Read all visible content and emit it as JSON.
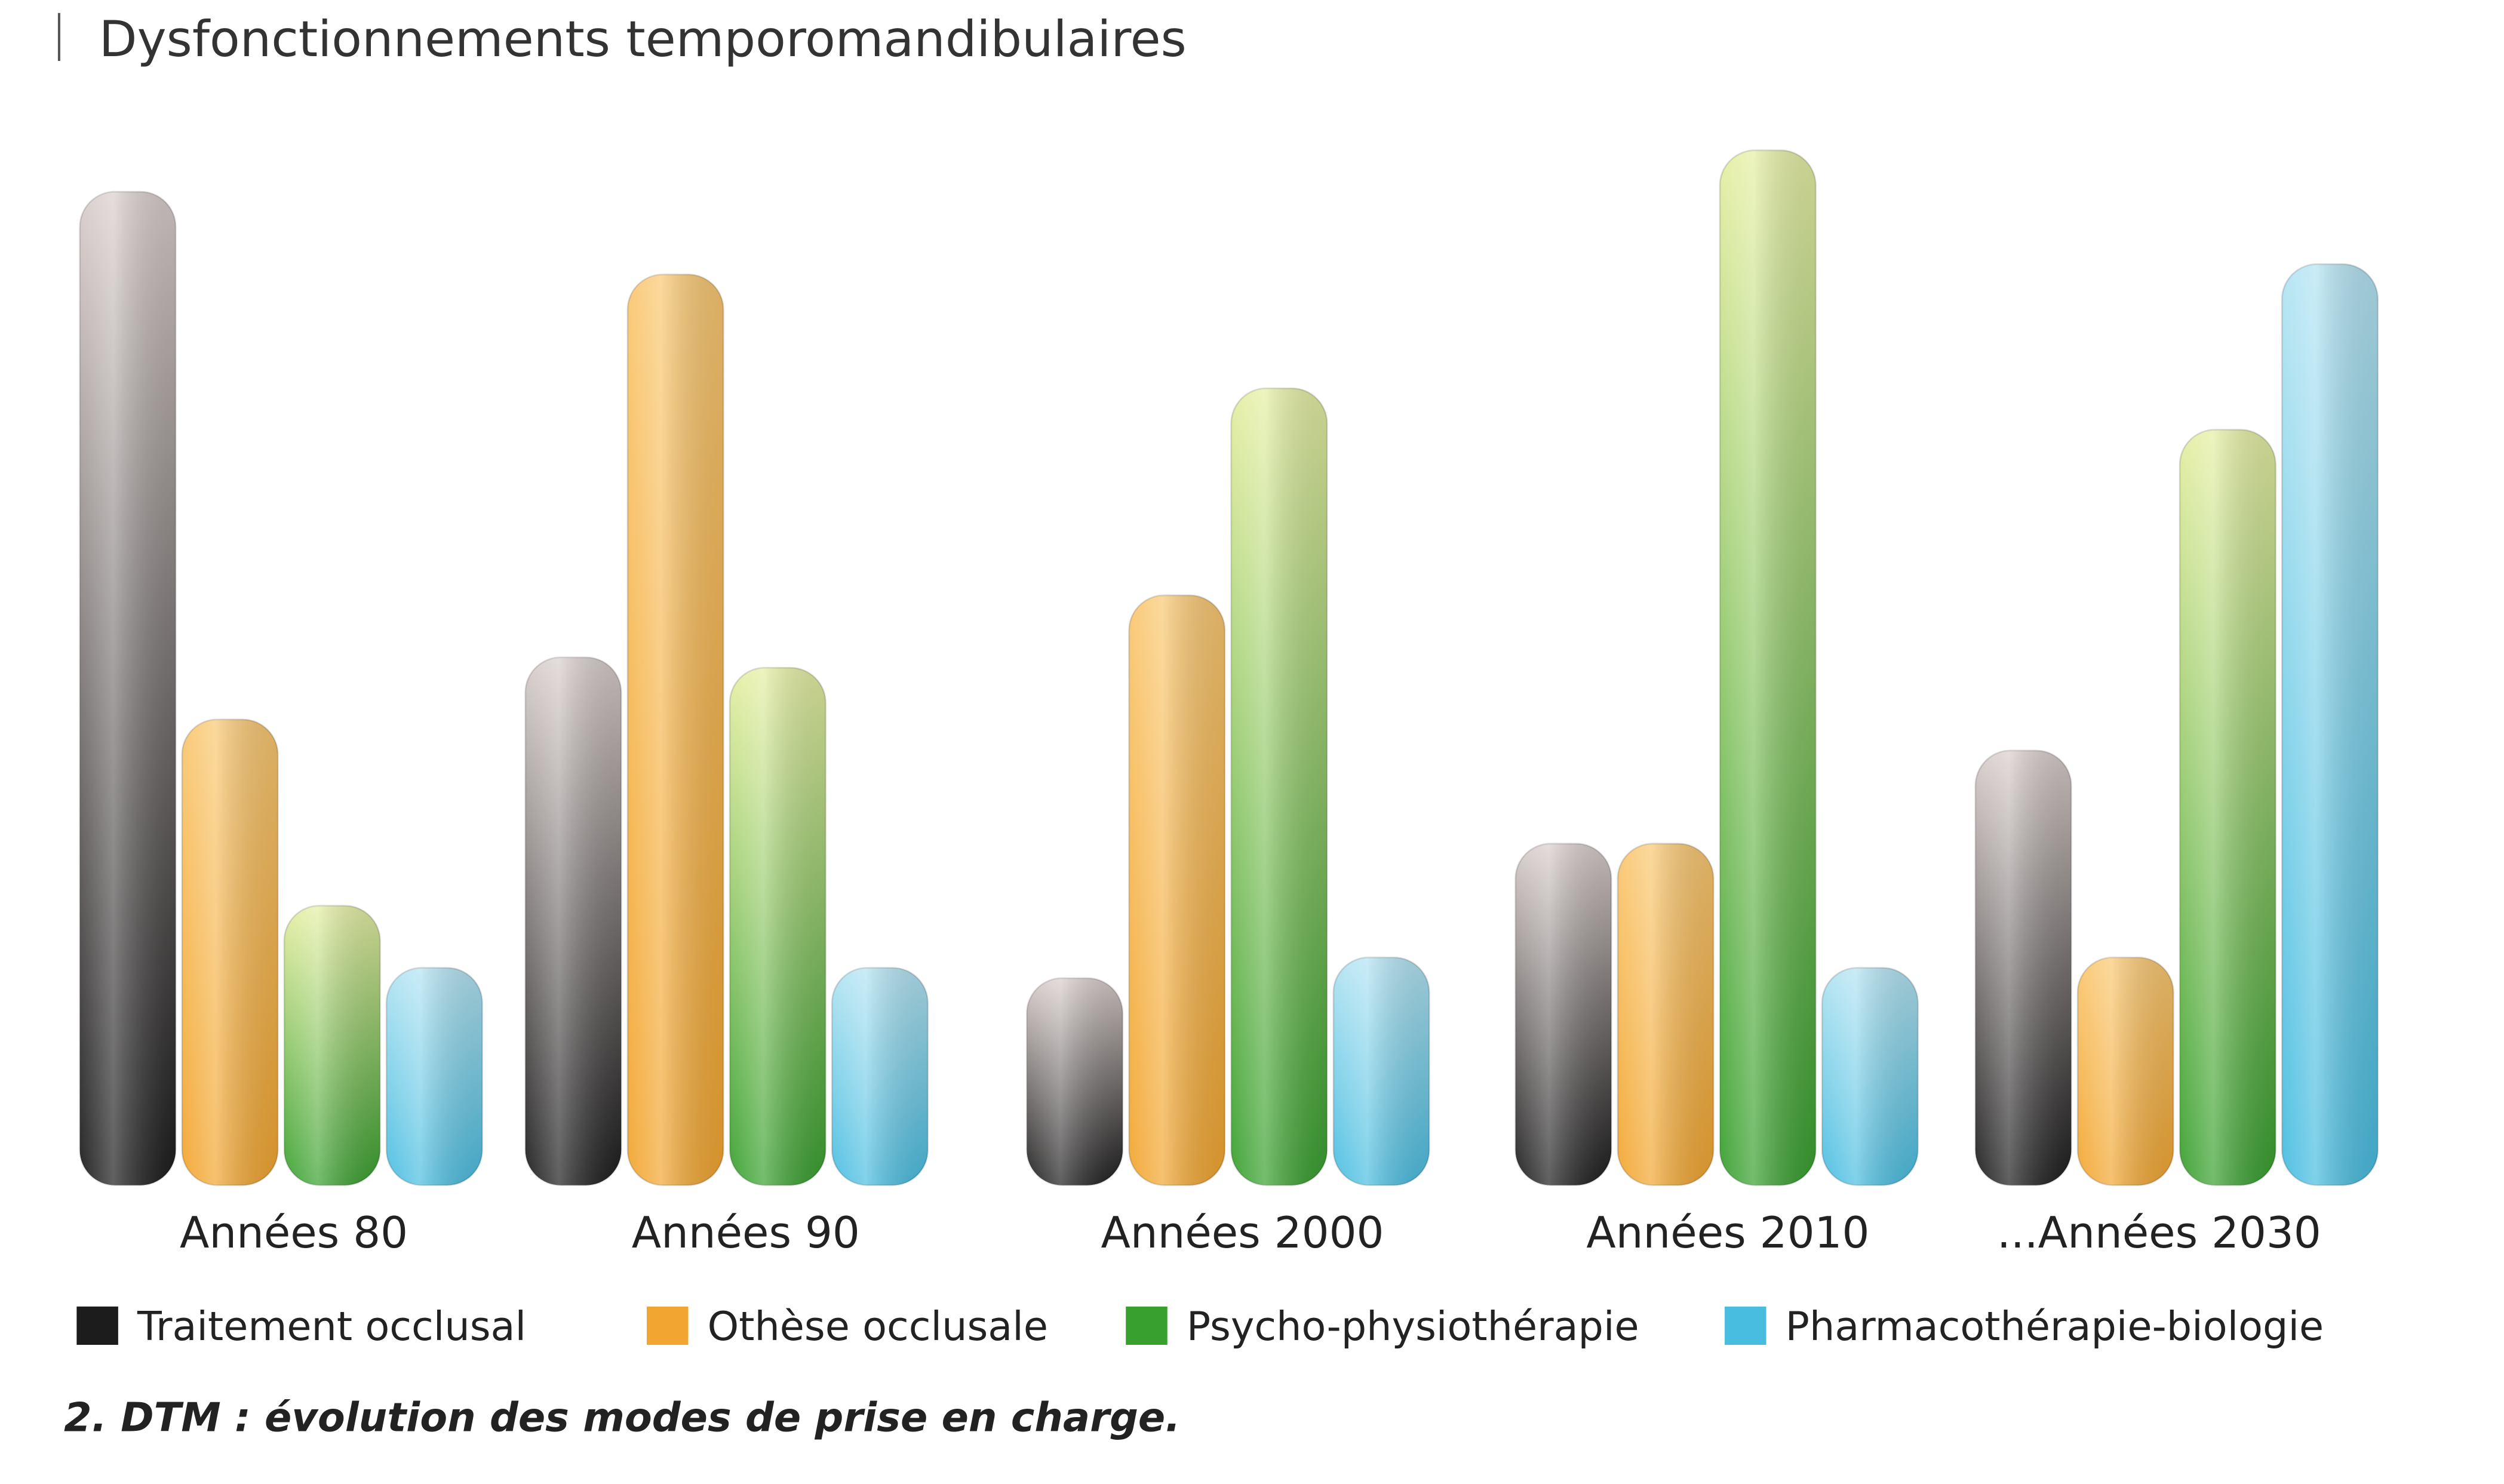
{
  "chart_data": {
    "type": "bar",
    "title": "Dysfonctionnements temporomandibulaires",
    "caption": "2. DTM : évolution des modes de prise en charge.",
    "xlabel": "",
    "ylabel": "",
    "ylim": [
      0,
      100
    ],
    "grid": false,
    "legend_position": "bottom",
    "categories": [
      "Années 80",
      "Années 90",
      "Années 2000",
      "Années 2010",
      "...Années 2030"
    ],
    "series": [
      {
        "name": "Traitement occlusal",
        "color": "#1c1c1c",
        "top_color": "#d9cfcd",
        "values": [
          96,
          51,
          20,
          33,
          42
        ]
      },
      {
        "name": "Othèse occlusale",
        "color": "#f2a631",
        "top_color": "#f9c873",
        "values": [
          45,
          88,
          57,
          33,
          22
        ]
      },
      {
        "name": "Psycho-physiothérapie",
        "color": "#38a02f",
        "top_color": "#e6efa4",
        "values": [
          27,
          50,
          77,
          100,
          73
        ]
      },
      {
        "name": "Pharmacothérapie-biologie",
        "color": "#48bde0",
        "top_color": "#b4e4f2",
        "values": [
          21,
          21,
          22,
          21,
          89
        ]
      }
    ]
  }
}
